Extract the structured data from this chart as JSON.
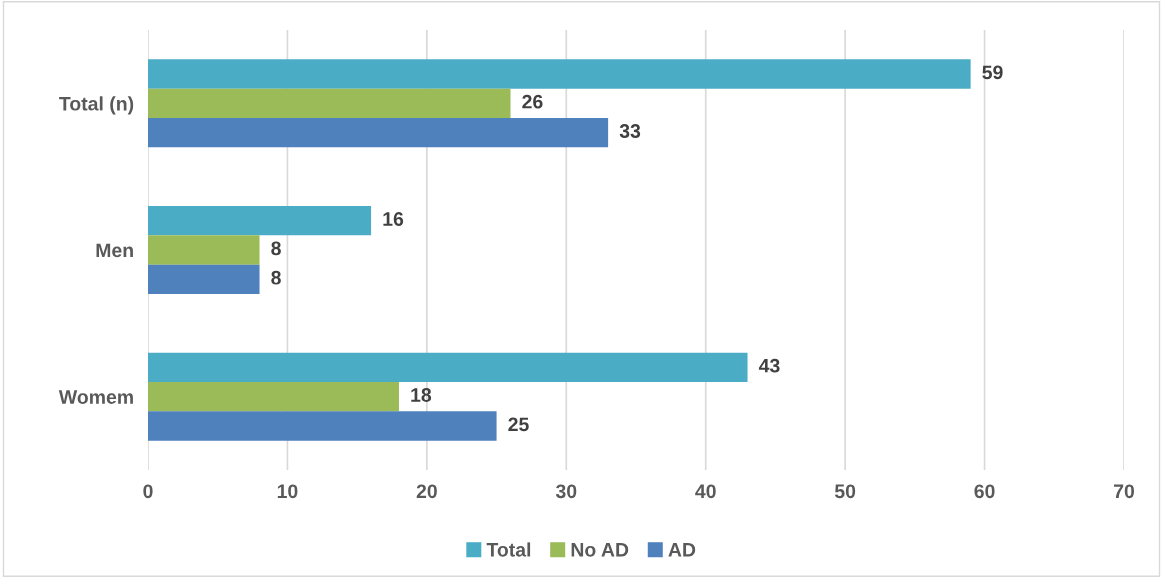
{
  "chart_data": {
    "type": "bar",
    "orientation": "horizontal",
    "categories": [
      "Total (n)",
      "Men",
      "Womem"
    ],
    "series": [
      {
        "name": "Total",
        "color": "#4bacc6",
        "values": [
          59,
          16,
          43
        ]
      },
      {
        "name": "No AD",
        "color": "#9bbb59",
        "values": [
          26,
          8,
          18
        ]
      },
      {
        "name": "AD",
        "color": "#4f81bd",
        "values": [
          33,
          8,
          25
        ]
      }
    ],
    "xlim": [
      0,
      70
    ],
    "xticks": [
      0,
      10,
      20,
      30,
      40,
      50,
      60,
      70
    ],
    "grid": "x",
    "legend": "bottom",
    "data_labels": true
  }
}
